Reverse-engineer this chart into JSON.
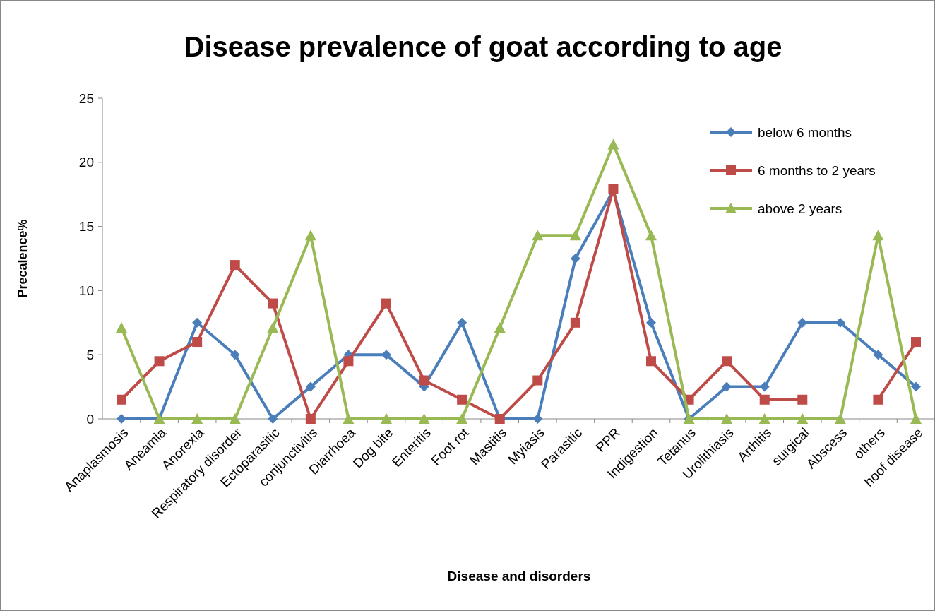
{
  "chart_data": {
    "type": "line",
    "title": "Disease prevalence of goat according to age",
    "xlabel": "Disease and disorders",
    "ylabel": "Precalence%",
    "categories": [
      "Anaplasmosis",
      "Aneamia",
      "Anorexia",
      "Respiratory disorder",
      "Ectoparasitic",
      "conjunctivitis",
      "Diarrhoea",
      "Dog bite",
      "Enteritis",
      "Foot rot",
      "Mastitis",
      "Myiasis",
      "Parasitic",
      "PPR",
      "Indigestion",
      "Tetanus",
      "Urolithiasis",
      "Arthitis",
      "surgical",
      "Abscess",
      "others",
      "hoof disease"
    ],
    "series": [
      {
        "name": "below 6 months",
        "color": "#4a7ebb",
        "marker": "diamond",
        "values": [
          0,
          0,
          7.5,
          5,
          0,
          2.5,
          5,
          5,
          2.5,
          7.5,
          0,
          0,
          12.5,
          17.8,
          7.5,
          0,
          2.5,
          2.5,
          7.5,
          7.5,
          5,
          2.5
        ]
      },
      {
        "name": "6 months to 2 years",
        "color": "#be4b48",
        "marker": "square",
        "values": [
          1.5,
          4.5,
          6,
          12,
          9,
          0,
          4.5,
          9,
          3,
          1.5,
          0,
          3,
          7.5,
          17.9,
          4.5,
          1.5,
          4.5,
          1.5,
          1.5,
          null,
          1.5,
          6
        ]
      },
      {
        "name": "above 2 years",
        "color": "#98b954",
        "marker": "triangle",
        "values": [
          7.1,
          0,
          0,
          0,
          7.1,
          14.3,
          0,
          0,
          0,
          0,
          7.1,
          14.3,
          14.3,
          21.4,
          14.3,
          0,
          0,
          0,
          0,
          0,
          14.3,
          0
        ]
      }
    ],
    "ylim": [
      0,
      25
    ],
    "yticks": [
      0,
      5,
      10,
      15,
      20,
      25
    ],
    "grid": false,
    "legend": "top right",
    "line_style": "solid"
  }
}
